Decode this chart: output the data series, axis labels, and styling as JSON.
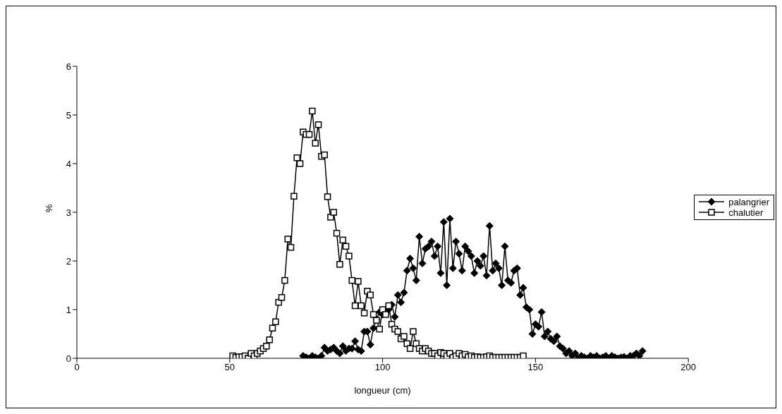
{
  "chart_data": {
    "type": "line",
    "xlabel": "longueur (cm)",
    "ylabel": "%",
    "xlim": [
      0,
      200
    ],
    "xticks": [
      0,
      50,
      100,
      150,
      200
    ],
    "ylim": [
      0,
      6
    ],
    "yticks": [
      0,
      1,
      2,
      3,
      4,
      5,
      6
    ],
    "grid": false,
    "legend": "right",
    "series": [
      {
        "name": "palangrier",
        "color": "#000000",
        "marker": "diamond",
        "x": [
          74,
          75,
          76,
          77,
          78,
          79,
          80,
          81,
          82,
          83,
          84,
          85,
          86,
          87,
          88,
          89,
          90,
          91,
          92,
          93,
          94,
          95,
          96,
          97,
          98,
          99,
          100,
          101,
          102,
          103,
          104,
          105,
          106,
          107,
          108,
          109,
          110,
          111,
          112,
          113,
          114,
          115,
          116,
          117,
          118,
          119,
          120,
          121,
          122,
          123,
          124,
          125,
          126,
          127,
          128,
          129,
          130,
          131,
          132,
          133,
          134,
          135,
          136,
          137,
          138,
          139,
          140,
          141,
          142,
          143,
          144,
          145,
          146,
          147,
          148,
          149,
          150,
          151,
          152,
          153,
          154,
          155,
          156,
          157,
          158,
          159,
          160,
          161,
          162,
          163,
          164,
          165,
          166,
          167,
          168,
          169,
          170,
          171,
          172,
          173,
          174,
          175,
          176,
          177,
          178,
          179,
          180,
          181,
          182,
          183,
          184,
          185
        ],
        "values": [
          0.05,
          0.02,
          0,
          0.05,
          0.02,
          0,
          0.05,
          0.22,
          0.15,
          0.18,
          0.22,
          0.15,
          0.1,
          0.25,
          0.15,
          0.2,
          0.2,
          0.35,
          0.18,
          0.15,
          0.55,
          0.55,
          0.28,
          0.62,
          0.8,
          0.95,
          0.9,
          1,
          1,
          1.1,
          0.85,
          1.3,
          1.15,
          1.35,
          1.8,
          2.05,
          1.85,
          1.6,
          2.5,
          1.95,
          2.25,
          2.3,
          2.4,
          2.1,
          2.3,
          1.75,
          2.8,
          1.5,
          2.87,
          1.85,
          2.4,
          2.15,
          1.8,
          2.3,
          2.2,
          2.1,
          1.75,
          2,
          1.9,
          2.1,
          1.7,
          2.72,
          1.8,
          1.95,
          1.85,
          1.5,
          2.3,
          1.6,
          1.55,
          1.8,
          1.85,
          1.3,
          1.45,
          1.05,
          1,
          0.5,
          0.7,
          0.65,
          0.95,
          0.45,
          0.55,
          0.4,
          0.35,
          0.45,
          0.25,
          0.2,
          0.1,
          0.15,
          0.05,
          0.1,
          0,
          0.05,
          0.02,
          0,
          0.05,
          0.02,
          0.05,
          0,
          0.02,
          0.05,
          0,
          0.05,
          0.02,
          0,
          0.02,
          0.03,
          0,
          0.05,
          0.05,
          0.1,
          0.05,
          0.15
        ]
      },
      {
        "name": "chalutier",
        "color": "#000000",
        "marker": "square",
        "x": [
          51,
          52,
          53,
          54,
          55,
          56,
          57,
          58,
          59,
          60,
          61,
          62,
          63,
          64,
          65,
          66,
          67,
          68,
          69,
          70,
          71,
          72,
          73,
          74,
          75,
          76,
          77,
          78,
          79,
          80,
          81,
          82,
          83,
          84,
          85,
          86,
          87,
          88,
          89,
          90,
          91,
          92,
          93,
          94,
          95,
          96,
          97,
          98,
          99,
          100,
          101,
          102,
          103,
          104,
          105,
          106,
          107,
          108,
          109,
          110,
          111,
          112,
          113,
          114,
          115,
          116,
          117,
          118,
          119,
          120,
          121,
          122,
          123,
          124,
          125,
          126,
          127,
          128,
          129,
          130,
          131,
          132,
          133,
          134,
          135,
          136,
          137,
          138,
          139,
          140,
          141,
          142,
          143,
          144,
          145,
          146
        ],
        "values": [
          0.05,
          0.02,
          0.03,
          0.03,
          0.05,
          0,
          0.1,
          0.05,
          0.1,
          0.15,
          0.2,
          0.25,
          0.38,
          0.62,
          0.75,
          1.15,
          1.25,
          1.6,
          2.45,
          2.28,
          3.33,
          4.12,
          4,
          4.65,
          4.6,
          4.6,
          5.08,
          4.42,
          4.8,
          4.15,
          4.18,
          3.32,
          2.9,
          3,
          2.57,
          1.93,
          2.43,
          2.3,
          2.1,
          1.6,
          1.08,
          1.58,
          1.08,
          0.93,
          1.38,
          1.3,
          0.9,
          0.78,
          0.6,
          1,
          0.9,
          1.08,
          0.7,
          0.6,
          0.55,
          0.4,
          0.45,
          0.3,
          0.2,
          0.55,
          0.3,
          0.2,
          0.15,
          0.2,
          0.15,
          0.1,
          0.1,
          0.05,
          0.12,
          0.1,
          0.05,
          0.1,
          0.02,
          0.05,
          0.1,
          0.05,
          0.08,
          0.03,
          0.05,
          0.02,
          0.03,
          0.02,
          0.02,
          0.03,
          0.05,
          0.02,
          0.02,
          0.02,
          0.02,
          0.02,
          0.02,
          0.02,
          0.02,
          0.02,
          0.02,
          0.05
        ]
      }
    ]
  }
}
